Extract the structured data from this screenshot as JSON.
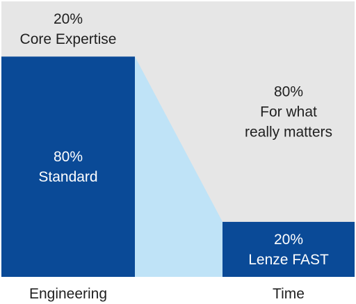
{
  "chart_data": {
    "type": "bar",
    "stacked": true,
    "normalized_percent": true,
    "categories": [
      "Engineering",
      "Time"
    ],
    "stacks": [
      {
        "category": "Engineering",
        "segments": [
          {
            "id": "standard",
            "value": 80,
            "lines": [
              "80%",
              "Standard"
            ],
            "color": "#0a4a97",
            "text_color": "#ffffff"
          },
          {
            "id": "core",
            "value": 20,
            "lines": [
              "20%",
              "Core Expertise"
            ],
            "color": "#e6e6e6",
            "text_color": "#1f1f1f"
          }
        ]
      },
      {
        "category": "Time",
        "segments": [
          {
            "id": "lenze",
            "value": 20,
            "lines": [
              "20%",
              "Lenze FAST"
            ],
            "color": "#0a4a97",
            "text_color": "#ffffff"
          },
          {
            "id": "matters",
            "value": 80,
            "lines": [
              "80%",
              "For what",
              "really matters"
            ],
            "color": "#e6e6e6",
            "text_color": "#1f1f1f"
          }
        ]
      }
    ],
    "connectors": [
      {
        "from_stack": 0,
        "to_stack": 1,
        "boundary_from": 80,
        "boundary_to": 20,
        "color_below": "#bfe3f7",
        "color_above": "#e6e6e6"
      }
    ],
    "ylim": [
      0,
      100
    ]
  }
}
